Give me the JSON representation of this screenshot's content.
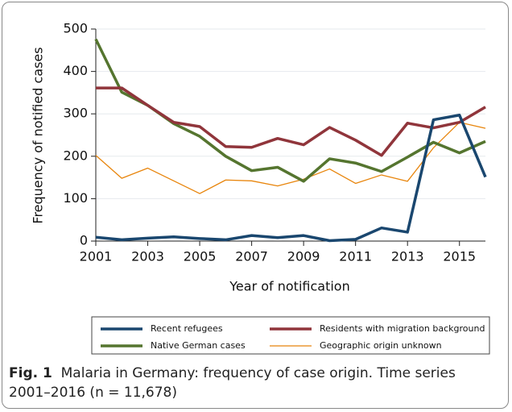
{
  "chart_data": {
    "type": "line",
    "x": [
      2001,
      2002,
      2003,
      2004,
      2005,
      2006,
      2007,
      2008,
      2009,
      2010,
      2011,
      2012,
      2013,
      2014,
      2015,
      2016
    ],
    "series": [
      {
        "name": "Recent refugees",
        "color": "#1a476f",
        "width": 3.5,
        "values": [
          9,
          3,
          7,
          10,
          6,
          3,
          13,
          8,
          13,
          1,
          4,
          31,
          21,
          286,
          297,
          151
        ]
      },
      {
        "name": "Residents with migration background",
        "color": "#90353b",
        "width": 3.5,
        "values": [
          361,
          361,
          320,
          280,
          270,
          223,
          221,
          242,
          227,
          268,
          238,
          202,
          278,
          267,
          280,
          316
        ]
      },
      {
        "name": "Native German cases",
        "color": "#55752f",
        "width": 3.5,
        "values": [
          476,
          351,
          320,
          277,
          247,
          200,
          166,
          174,
          141,
          194,
          184,
          164,
          198,
          233,
          208,
          235
        ]
      },
      {
        "name": "Geographic origin unknown",
        "color": "#e8850c",
        "width": 1.3,
        "values": [
          202,
          148,
          172,
          142,
          112,
          144,
          142,
          130,
          146,
          170,
          136,
          156,
          141,
          220,
          280,
          266
        ]
      }
    ],
    "xlim": [
      2001,
      2016
    ],
    "xticks": [
      2001,
      2003,
      2005,
      2007,
      2009,
      2011,
      2013,
      2015
    ],
    "ylim": [
      0,
      500
    ],
    "yticks": [
      0,
      100,
      200,
      300,
      400,
      500
    ],
    "grid": true,
    "xlabel": "Year of notification",
    "ylabel": "Frequency of notified cases",
    "caption_label": "Fig. 1",
    "caption": "Malaria in Germany: frequency of case origin. Time series 2001–2016 (n = 11,678)"
  }
}
